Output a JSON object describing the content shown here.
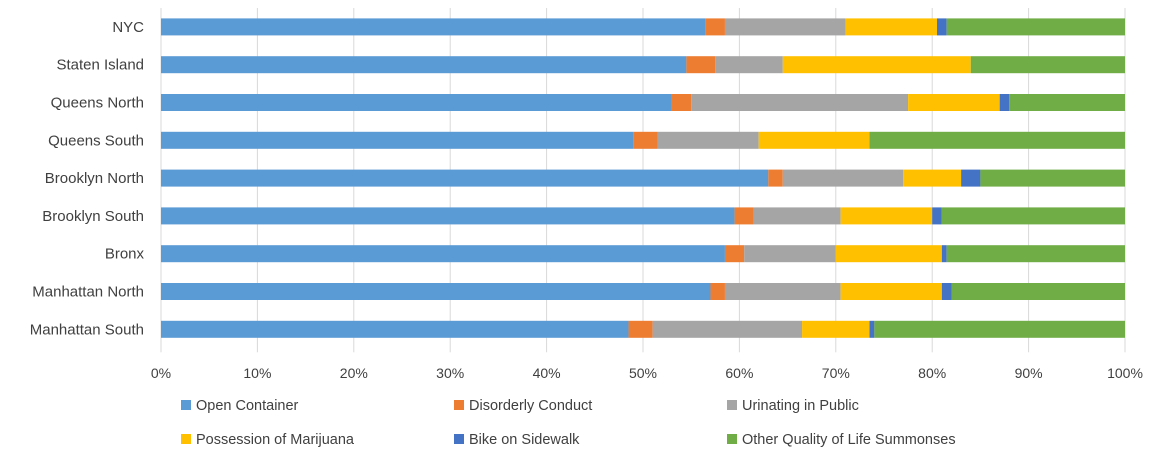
{
  "chart_data": {
    "type": "bar",
    "orientation": "horizontal",
    "stacked": "percent",
    "categories": [
      "NYC",
      "Staten Island",
      "Queens North",
      "Queens South",
      "Brooklyn North",
      "Brooklyn South",
      "Bronx",
      "Manhattan North",
      "Manhattan South"
    ],
    "series": [
      {
        "name": "Open Container",
        "color": "#5B9BD5",
        "values": [
          56.5,
          54.5,
          53.0,
          49.0,
          63.0,
          59.5,
          58.5,
          57.0,
          48.5
        ]
      },
      {
        "name": "Disorderly Conduct",
        "color": "#ED7D31",
        "values": [
          2.0,
          3.0,
          2.0,
          2.5,
          1.5,
          2.0,
          2.0,
          1.5,
          2.5
        ]
      },
      {
        "name": "Urinating in Public",
        "color": "#A5A5A5",
        "values": [
          12.5,
          7.0,
          22.5,
          10.5,
          12.5,
          9.0,
          9.5,
          12.0,
          15.5
        ]
      },
      {
        "name": "Possession of Marijuana",
        "color": "#FFC000",
        "values": [
          9.5,
          19.5,
          9.5,
          11.5,
          6.0,
          9.5,
          11.0,
          10.5,
          7.0
        ]
      },
      {
        "name": "Bike on Sidewalk",
        "color": "#4472C4",
        "values": [
          1.0,
          0.0,
          1.0,
          0.0,
          2.0,
          1.0,
          0.5,
          1.0,
          0.5
        ]
      },
      {
        "name": "Other Quality of Life Summonses",
        "color": "#70AD47",
        "values": [
          18.5,
          16.0,
          12.0,
          26.5,
          15.0,
          19.0,
          18.5,
          18.0,
          26.0
        ]
      }
    ],
    "xlim": [
      0,
      100
    ],
    "x_ticks": [
      "0%",
      "10%",
      "20%",
      "30%",
      "40%",
      "50%",
      "60%",
      "70%",
      "80%",
      "90%",
      "100%"
    ],
    "grid": "vertical",
    "legend_position": "bottom",
    "title": "",
    "xlabel": "",
    "ylabel": ""
  }
}
